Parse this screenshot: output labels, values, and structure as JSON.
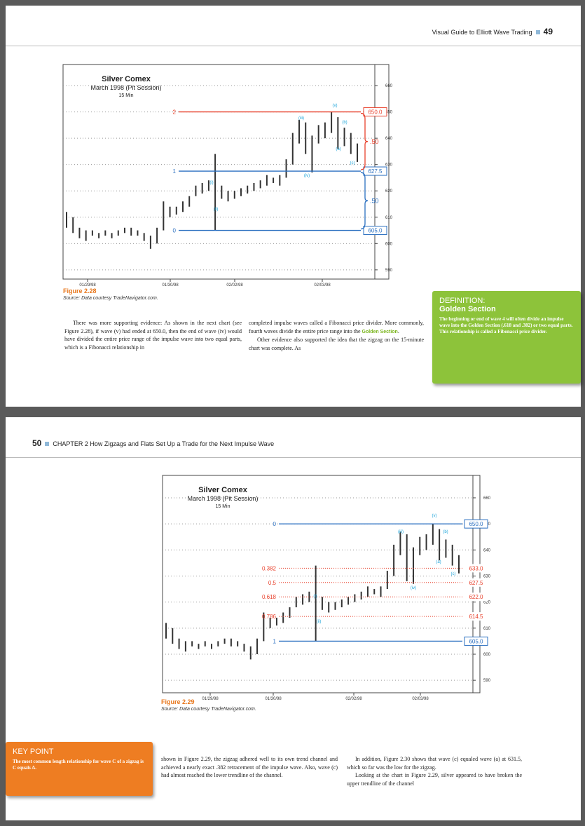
{
  "page1": {
    "header": {
      "book": "Visual Guide to Elliott Wave Trading",
      "page": "49"
    },
    "figure": {
      "title": "Silver Comex",
      "subtitle": "March 1998 (Pit Session)",
      "interval": "15 Min",
      "xlabels": [
        "01/29/98",
        "01/30/98",
        "02/02/98",
        "02/03/98"
      ],
      "ylim": [
        586.5,
        668
      ],
      "yticks": [
        660,
        650,
        640,
        630,
        620,
        610,
        600,
        590
      ],
      "lows": [
        606,
        604,
        602,
        601,
        603,
        602,
        603,
        602,
        603,
        604,
        603,
        603,
        601,
        598,
        600,
        605,
        610,
        611,
        612,
        614,
        618,
        619,
        620,
        605,
        617,
        616,
        617,
        618,
        619,
        620,
        621,
        622,
        623,
        622,
        625,
        630,
        638,
        634,
        627,
        638,
        640,
        642,
        636,
        637,
        634,
        631
      ],
      "highs": [
        612,
        610,
        606,
        605,
        605,
        604,
        605,
        604,
        605,
        606,
        606,
        605,
        604,
        603,
        606,
        616,
        614,
        614,
        616,
        618,
        622,
        623,
        624,
        634,
        622,
        620,
        620,
        621,
        622,
        623,
        624,
        626,
        625,
        626,
        632,
        642,
        647,
        646,
        641,
        645,
        646,
        650,
        648,
        644,
        642,
        638
      ],
      "levels": [
        {
          "label": "2",
          "value": 650,
          "value_label": "650.0",
          "color": "#e8412c",
          "style": "solid"
        },
        {
          "label": "1",
          "value": 627.5,
          "value_label": "627.5",
          "color": "#2a6fc0",
          "style": "solid"
        },
        {
          "label": "0",
          "value": 605,
          "value_label": "605.0",
          "color": "#2a6fc0",
          "style": "solid"
        }
      ],
      "brackets": [
        {
          "label": ".50",
          "color": "#e8412c"
        },
        {
          "label": ".50",
          "color": "#2a6fc0"
        }
      ],
      "waves": [
        "(i)",
        "(ii)",
        "(iii)",
        "(iv)",
        "(v)",
        "(a)",
        "(b)",
        "(c)"
      ],
      "caption": "Figure  2.28",
      "source": "Source: Data courtesy TradeNavigator.com."
    },
    "col1": "There was more supporting evidence: As shown in the next chart (see Figure 2.28), if wave (v) had ended at 650.0, then the end of wave (iv) would have divided the entire price range of the impulse wave into two equal parts, which is a Fibonacci relationship in",
    "col2a": "completed impulse waves called a Fibonacci price divider. More commonly, fourth waves divide the entire price range into the ",
    "col2term": "Golden Section",
    "col2b": ".",
    "col2p2": "Other evidence also supported the idea that the zigzag on the 15-minute chart was complete. As",
    "sidebar": {
      "kind": "DEFINITION:",
      "term": "Golden Section",
      "text": "The beginning or end of wave 4 will often divide an impulse wave into the Golden Section (.618 and .382) or two equal parts. This relationship is called a Fibonacci price divider."
    }
  },
  "page2": {
    "header": {
      "page": "50",
      "chapter": "CHAPTER 2  How Zigzags and Flats Set Up a Trade for the Next Impulse Wave"
    },
    "figure": {
      "title": "Silver Comex",
      "subtitle": "March 1998 (Pit Session)",
      "interval": "15 Min",
      "xlabels": [
        "01/29/98",
        "01/30/98",
        "02/02/98",
        "02/03/98"
      ],
      "ylim": [
        585.2,
        668.6
      ],
      "yticks": [
        660,
        650,
        640,
        630,
        620,
        610,
        600,
        590
      ],
      "lows": [
        606,
        604,
        602,
        601,
        603,
        602,
        603,
        602,
        603,
        604,
        603,
        603,
        601,
        598,
        600,
        605,
        610,
        611,
        612,
        614,
        618,
        619,
        620,
        605,
        617,
        616,
        617,
        618,
        619,
        620,
        621,
        622,
        623,
        622,
        625,
        630,
        638,
        628,
        627,
        638,
        640,
        642,
        636,
        637,
        634,
        631
      ],
      "highs": [
        612,
        610,
        606,
        605,
        605,
        604,
        605,
        604,
        605,
        606,
        606,
        605,
        604,
        603,
        606,
        616,
        614,
        614,
        616,
        618,
        622,
        623,
        624,
        634,
        622,
        620,
        620,
        621,
        622,
        623,
        624,
        626,
        625,
        626,
        632,
        642,
        647,
        646,
        641,
        645,
        646,
        650,
        648,
        644,
        642,
        638
      ],
      "levels": [
        {
          "label": "0",
          "value": 650,
          "value_label": "650.0",
          "color": "#2a6fc0",
          "style": "solid"
        },
        {
          "label": "0.382",
          "value": 633,
          "value_label": "633.0",
          "color": "#e8412c",
          "style": "dotted"
        },
        {
          "label": "0.5",
          "value": 627.5,
          "value_label": "627.5",
          "color": "#e8412c",
          "style": "dotted"
        },
        {
          "label": "0.618",
          "value": 622,
          "value_label": "622.0",
          "color": "#e8412c",
          "style": "dotted"
        },
        {
          "label": "0.786",
          "value": 614.5,
          "value_label": "614.5",
          "color": "#e8412c",
          "style": "dotted"
        },
        {
          "label": "1",
          "value": 605,
          "value_label": "605.0",
          "color": "#2a6fc0",
          "style": "solid"
        }
      ],
      "brackets": [],
      "waves": [
        "(i)",
        "(ii)",
        "(iii)",
        "(iv)",
        "(v)",
        "(a)",
        "(b)",
        "(c)"
      ],
      "caption": "Figure  2.29",
      "source": "Source: Data courtesy TradeNavigator.com."
    },
    "sidebar": {
      "kind": "KEY POINT",
      "text": "The most common length relationship for wave C of a zigzag is C equals A."
    },
    "col1": "shown in Figure 2.29, the zigzag adhered well to its own trend channel and achieved a nearly exact .382 retracement of the impulse wave. Also, wave (c) had almost reached the lower trendline of the channel.",
    "col2": "In addition, Figure 2.30 shows that wave (c) equaled wave (a) at 631.5, which so far was the low for the zigzag.",
    "col2p2": "Looking at the chart in Figure 2.29, silver appeared to have broken the upper trendline of the channel"
  }
}
